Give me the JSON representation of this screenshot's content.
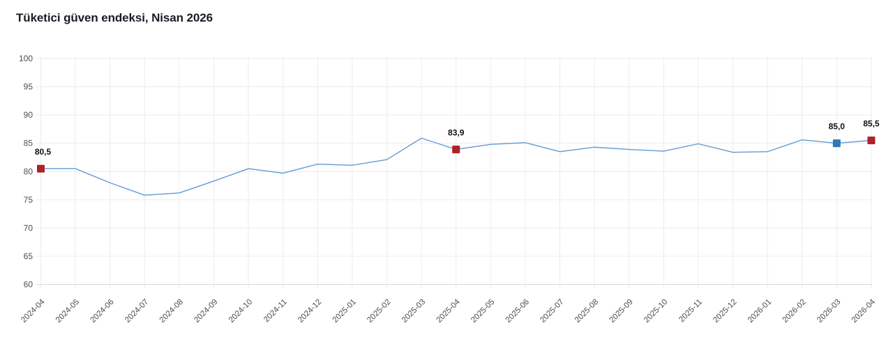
{
  "page": {
    "background": "#ffffff"
  },
  "chart_data": {
    "type": "line",
    "title": "Tüketici güven endeksi, Nisan 2026",
    "categories": [
      "2024-04",
      "2024-05",
      "2024-06",
      "2024-07",
      "2024-08",
      "2024-09",
      "2024-10",
      "2024-11",
      "2024-12",
      "2025-01",
      "2025-02",
      "2025-03",
      "2025-04",
      "2025-05",
      "2025-06",
      "2025-07",
      "2025-08",
      "2025-09",
      "2025-10",
      "2025-11",
      "2025-12",
      "2026-01",
      "2026-02",
      "2026-03",
      "2026-04"
    ],
    "values": [
      80.5,
      80.5,
      78.0,
      75.8,
      76.2,
      78.3,
      80.5,
      79.7,
      81.3,
      81.1,
      82.1,
      85.9,
      83.9,
      84.8,
      85.1,
      83.5,
      84.3,
      83.9,
      83.6,
      84.9,
      83.4,
      83.5,
      85.6,
      85.0,
      85.5
    ],
    "ylim": [
      60,
      100
    ],
    "yticks": [
      60,
      65,
      70,
      75,
      80,
      85,
      90,
      95,
      100
    ],
    "grid": true,
    "legend": "none",
    "line_color": "#629bd2",
    "annotations": [
      {
        "index": 0,
        "category": "2024-04",
        "value": 80.5,
        "label": "80,5",
        "marker": "square",
        "marker_color": "#ae2127"
      },
      {
        "index": 12,
        "category": "2025-04",
        "value": 83.9,
        "label": "83,9",
        "marker": "square",
        "marker_color": "#ae2127"
      },
      {
        "index": 23,
        "category": "2026-03",
        "value": 85.0,
        "label": "85,0",
        "marker": "square",
        "marker_color": "#2e77b5"
      },
      {
        "index": 24,
        "category": "2026-04",
        "value": 85.5,
        "label": "85,5",
        "marker": "square",
        "marker_color": "#ae2127"
      }
    ],
    "colors": {
      "grid": "#ececec",
      "axis_line": "#d9d9d9",
      "axis_text": "#4d4d4d",
      "annotation_text": "#111111",
      "title_text": "#1b1b26"
    }
  }
}
